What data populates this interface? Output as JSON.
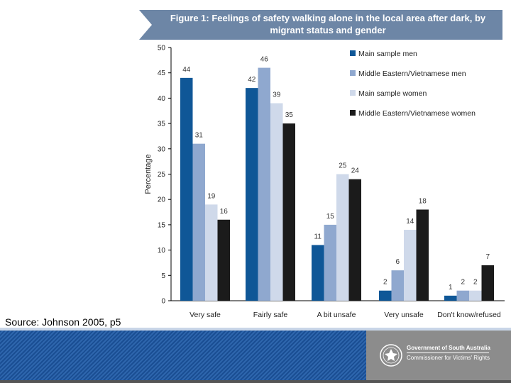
{
  "chart_data": {
    "type": "bar",
    "title": "Figure 1: Feelings of safety walking alone in the local area after dark, by migrant status and gender",
    "xlabel": "",
    "ylabel": "Percentage",
    "ylim": [
      0,
      50
    ],
    "yticks": [
      "0",
      "5",
      "10",
      "15",
      "20",
      "25",
      "30",
      "35",
      "40",
      "45",
      "50"
    ],
    "grid": false,
    "legend_position": "top-right",
    "categories": [
      "Very safe",
      "Fairly safe",
      "A bit unsafe",
      "Very unsafe",
      "Don't know/refused"
    ],
    "series": [
      {
        "name": "Main sample men",
        "color": "#0f5797",
        "values": [
          44,
          42,
          11,
          2,
          1
        ]
      },
      {
        "name": "Middle Eastern/Vietnamese men",
        "color": "#8fa8cf",
        "values": [
          31,
          46,
          15,
          6,
          2
        ]
      },
      {
        "name": "Main sample women",
        "color": "#cfd9ea",
        "values": [
          19,
          39,
          25,
          14,
          2
        ]
      },
      {
        "name": "Middle Eastern/Vietnamese women",
        "color": "#1b1b1b",
        "values": [
          16,
          35,
          24,
          18,
          7
        ]
      }
    ]
  },
  "source_text": "Source: Johnson 2005, p5",
  "footer": {
    "gov_name": "Government of South Australia",
    "gov_dept": "Commissioner for Victims' Rights"
  }
}
